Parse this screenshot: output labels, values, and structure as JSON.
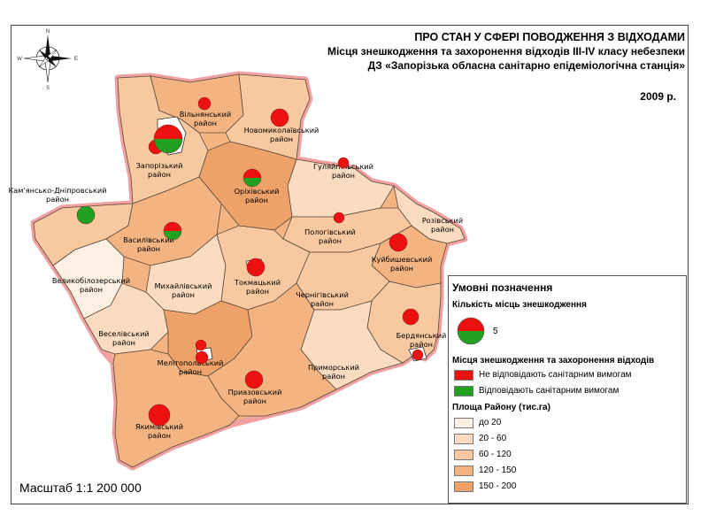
{
  "title": {
    "line1": "ПРО СТАН У СФЕРІ ПОВОДЖЕННЯ З ВІДХОДАМИ",
    "line2": "Місця знешкодження та захоронення відходів ІІІ-ІV класу небезпеки",
    "line3": "ДЗ «Запорізька обласна санітарно епідеміологічна станція»",
    "year": "2009 р."
  },
  "compass": {
    "n": "N",
    "s": "S",
    "w": "W",
    "e": "E"
  },
  "scale": "Масштаб 1:1 200 000",
  "colors": {
    "border_glow": "#f0a0a0",
    "not_compliant": "#ee1111",
    "compliant": "#22a022",
    "area_classes": [
      "#fdf0e2",
      "#fbdcc0",
      "#f8c9a0",
      "#f3b482",
      "#eea26a"
    ]
  },
  "districts": [
    "Вільнянський район",
    "Новомиколаївський район",
    "Запорізький район",
    "Гуляйпільський район",
    "Оріхівський район",
    "Кам'янсько-Дніпровський район",
    "Розівський район",
    "Василівський район",
    "Пологівський район",
    "Куйбишевський район",
    "Великобілозерський район",
    "Михайлівський район",
    "Токмацький район",
    "Чернігівський район",
    "Веселівський район",
    "Бердянський район",
    "Мелітопольський район",
    "Приморський район",
    "Приазовський район",
    "Якимівський район"
  ],
  "legend": {
    "title": "Умовні позначення",
    "count_heading": "Кількість місць знешкодження",
    "count_value": "5",
    "sites_heading": "Місця знешкодження та захоронення відходів",
    "not_compliant": "Не відповідають санітарним вимогам",
    "compliant": "Відповідають санітарним вимогам",
    "area_heading": "Площа Району (тис.га)",
    "area_classes": [
      "до 20",
      "20 - 60",
      "60 - 120",
      "120 - 150",
      "150 - 200"
    ]
  }
}
